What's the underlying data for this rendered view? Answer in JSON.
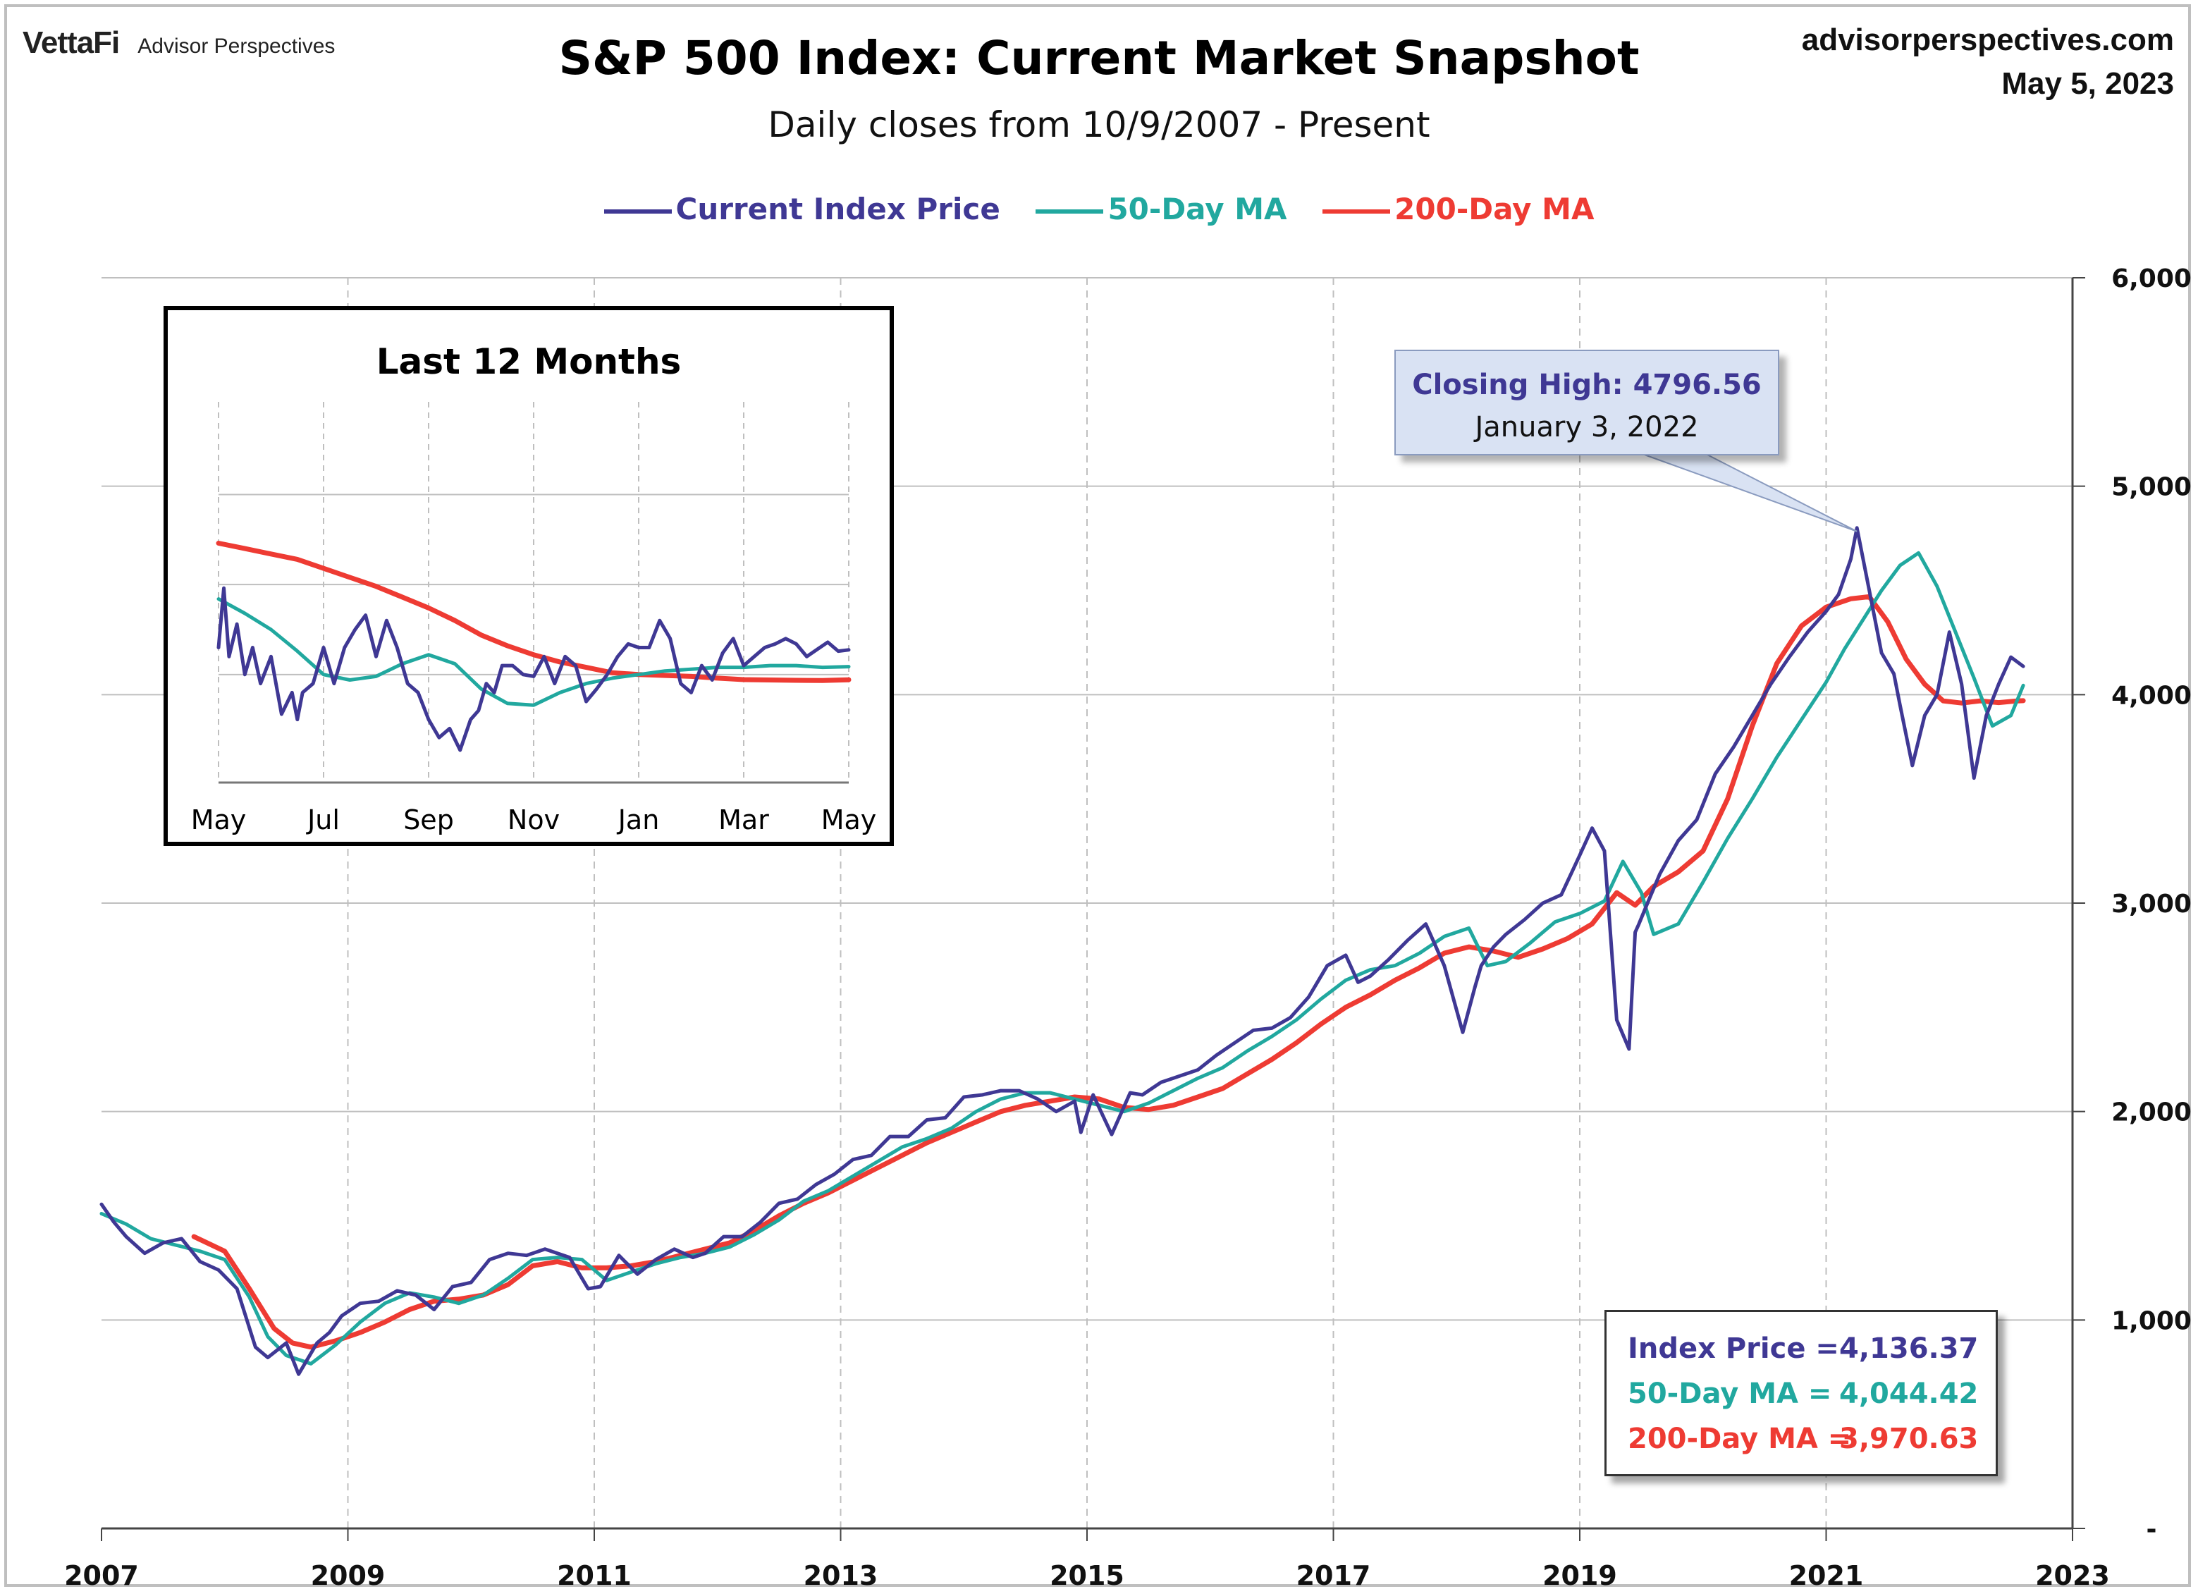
{
  "brand": {
    "logo": "VettaFi",
    "name": "Advisor Perspectives"
  },
  "site": {
    "url": "advisorperspectives.com",
    "date": "May 5, 2023"
  },
  "colors": {
    "price": "#3f3894",
    "ma50": "#21a89f",
    "ma200": "#ee3b33",
    "grid": "#bfbfbf"
  },
  "chart_data": [
    {
      "type": "line",
      "title": "S&P 500 Index: Current Market Snapshot",
      "subtitle": "Daily closes from 10/9/2007 - Present",
      "xlabel": "",
      "ylabel": "",
      "x_ticks": [
        "2007",
        "2009",
        "2011",
        "2013",
        "2015",
        "2017",
        "2019",
        "2021",
        "2023"
      ],
      "y_ticks": [
        "-",
        "1,000",
        "2,000",
        "3,000",
        "4,000",
        "5,000",
        "6,000"
      ],
      "xlim": [
        2007.0,
        2023.0
      ],
      "ylim": [
        0,
        6000
      ],
      "grid": true,
      "legend_position": "top",
      "series": [
        {
          "name": "Current Index Price",
          "x": [
            2007.0,
            2007.1,
            2007.2,
            2007.35,
            2007.5,
            2007.65,
            2007.8,
            2007.95,
            2008.1,
            2008.25,
            2008.35,
            2008.5,
            2008.6,
            2008.75,
            2008.85,
            2008.95,
            2009.1,
            2009.25,
            2009.4,
            2009.55,
            2009.7,
            2009.85,
            2010.0,
            2010.15,
            2010.3,
            2010.45,
            2010.6,
            2010.8,
            2010.95,
            2011.05,
            2011.2,
            2011.35,
            2011.5,
            2011.65,
            2011.8,
            2011.9,
            2012.05,
            2012.2,
            2012.35,
            2012.5,
            2012.65,
            2012.8,
            2012.95,
            2013.1,
            2013.25,
            2013.4,
            2013.55,
            2013.7,
            2013.85,
            2014.0,
            2014.15,
            2014.3,
            2014.45,
            2014.6,
            2014.75,
            2014.9,
            2014.95,
            2015.05,
            2015.2,
            2015.35,
            2015.45,
            2015.6,
            2015.75,
            2015.9,
            2016.05,
            2016.2,
            2016.35,
            2016.5,
            2016.65,
            2016.8,
            2016.95,
            2017.1,
            2017.2,
            2017.3,
            2017.45,
            2017.6,
            2017.75,
            2017.9,
            2018.05,
            2018.15,
            2018.2,
            2018.3,
            2018.4,
            2018.55,
            2018.7,
            2018.85,
            2019.0,
            2019.1,
            2019.2,
            2019.3,
            2019.4,
            2019.45,
            2019.48,
            2019.55,
            2019.65,
            2019.8,
            2019.95,
            2020.1,
            2020.25,
            2020.4,
            2020.55,
            2020.7,
            2020.85,
            2021.0,
            2021.1,
            2021.2,
            2021.25,
            2021.35,
            2021.45,
            2021.55,
            2021.6,
            2021.7,
            2021.8,
            2021.9,
            2022.0,
            2022.1,
            2022.2,
            2022.3,
            2022.4,
            2022.5,
            2022.6
          ],
          "values": [
            1555,
            1470,
            1400,
            1320,
            1370,
            1390,
            1280,
            1240,
            1150,
            870,
            820,
            890,
            740,
            890,
            940,
            1020,
            1080,
            1090,
            1140,
            1120,
            1050,
            1160,
            1180,
            1290,
            1320,
            1310,
            1340,
            1300,
            1150,
            1160,
            1310,
            1220,
            1290,
            1340,
            1300,
            1320,
            1400,
            1400,
            1470,
            1560,
            1580,
            1650,
            1700,
            1770,
            1790,
            1880,
            1880,
            1960,
            1970,
            2070,
            2080,
            2100,
            2100,
            2060,
            2000,
            2050,
            1900,
            2080,
            1890,
            2090,
            2080,
            2140,
            2170,
            2200,
            2270,
            2330,
            2390,
            2400,
            2450,
            2550,
            2700,
            2750,
            2620,
            2650,
            2730,
            2820,
            2900,
            2700,
            2380,
            2600,
            2700,
            2790,
            2850,
            2920,
            3000,
            3040,
            3230,
            3360,
            3250,
            2440,
            2300,
            2860,
            2900,
            3000,
            3140,
            3300,
            3400,
            3620,
            3750,
            3900,
            4050,
            4180,
            4300,
            4400,
            4480,
            4650,
            4800,
            4500,
            4200,
            4100,
            3950,
            3660,
            3900,
            4000,
            4300,
            4050,
            3600,
            3900,
            4050,
            4180,
            4136
          ]
        },
        {
          "name": "50-Day MA",
          "x": [
            2007.0,
            2007.2,
            2007.4,
            2007.6,
            2007.8,
            2008.0,
            2008.2,
            2008.35,
            2008.5,
            2008.7,
            2008.9,
            2009.1,
            2009.3,
            2009.5,
            2009.7,
            2009.9,
            2010.1,
            2010.3,
            2010.5,
            2010.7,
            2010.9,
            2011.1,
            2011.3,
            2011.5,
            2011.7,
            2011.9,
            2012.1,
            2012.3,
            2012.5,
            2012.7,
            2012.9,
            2013.1,
            2013.3,
            2013.5,
            2013.7,
            2013.9,
            2014.1,
            2014.3,
            2014.5,
            2014.7,
            2014.9,
            2015.1,
            2015.3,
            2015.5,
            2015.7,
            2015.9,
            2016.1,
            2016.3,
            2016.5,
            2016.7,
            2016.9,
            2017.1,
            2017.3,
            2017.5,
            2017.7,
            2017.9,
            2018.1,
            2018.25,
            2018.4,
            2018.6,
            2018.8,
            2019.0,
            2019.2,
            2019.35,
            2019.5,
            2019.6,
            2019.8,
            2020.0,
            2020.2,
            2020.4,
            2020.6,
            2020.8,
            2021.0,
            2021.15,
            2021.3,
            2021.45,
            2021.6,
            2021.75,
            2021.9,
            2022.05,
            2022.2,
            2022.35,
            2022.5,
            2022.6
          ],
          "values": [
            1510,
            1460,
            1390,
            1360,
            1330,
            1290,
            1110,
            920,
            830,
            790,
            880,
            990,
            1080,
            1130,
            1110,
            1080,
            1120,
            1200,
            1290,
            1300,
            1290,
            1190,
            1230,
            1270,
            1300,
            1320,
            1350,
            1410,
            1480,
            1570,
            1620,
            1690,
            1760,
            1830,
            1870,
            1920,
            2000,
            2060,
            2090,
            2090,
            2060,
            2030,
            2000,
            2040,
            2100,
            2160,
            2210,
            2290,
            2360,
            2440,
            2540,
            2630,
            2680,
            2700,
            2760,
            2840,
            2880,
            2700,
            2720,
            2810,
            2910,
            2950,
            3010,
            3200,
            3050,
            2850,
            2900,
            3100,
            3310,
            3500,
            3700,
            3880,
            4060,
            4220,
            4360,
            4500,
            4620,
            4680,
            4520,
            4300,
            4080,
            3850,
            3900,
            4044
          ]
        },
        {
          "name": "200-Day MA",
          "x": [
            2007.75,
            2008.0,
            2008.2,
            2008.4,
            2008.55,
            2008.7,
            2008.9,
            2009.1,
            2009.3,
            2009.5,
            2009.7,
            2009.9,
            2010.1,
            2010.3,
            2010.5,
            2010.7,
            2010.9,
            2011.1,
            2011.3,
            2011.5,
            2011.7,
            2011.9,
            2012.1,
            2012.3,
            2012.5,
            2012.7,
            2012.9,
            2013.1,
            2013.3,
            2013.5,
            2013.7,
            2013.9,
            2014.1,
            2014.3,
            2014.5,
            2014.7,
            2014.9,
            2015.1,
            2015.3,
            2015.5,
            2015.7,
            2015.9,
            2016.1,
            2016.3,
            2016.5,
            2016.7,
            2016.9,
            2017.1,
            2017.3,
            2017.5,
            2017.7,
            2017.9,
            2018.1,
            2018.3,
            2018.5,
            2018.7,
            2018.9,
            2019.1,
            2019.3,
            2019.45,
            2019.6,
            2019.8,
            2020.0,
            2020.2,
            2020.4,
            2020.6,
            2020.8,
            2021.0,
            2021.2,
            2021.35,
            2021.5,
            2021.65,
            2021.8,
            2021.95,
            2022.1,
            2022.25,
            2022.4,
            2022.55,
            2022.6
          ],
          "values": [
            1400,
            1330,
            1150,
            960,
            890,
            870,
            900,
            940,
            990,
            1050,
            1090,
            1100,
            1120,
            1170,
            1260,
            1280,
            1250,
            1250,
            1260,
            1280,
            1310,
            1340,
            1370,
            1430,
            1500,
            1560,
            1610,
            1670,
            1730,
            1790,
            1850,
            1900,
            1950,
            2000,
            2030,
            2050,
            2070,
            2060,
            2020,
            2010,
            2030,
            2070,
            2110,
            2180,
            2250,
            2330,
            2420,
            2500,
            2560,
            2630,
            2690,
            2760,
            2790,
            2770,
            2740,
            2780,
            2830,
            2900,
            3050,
            2990,
            3080,
            3150,
            3250,
            3500,
            3850,
            4150,
            4330,
            4420,
            4460,
            4470,
            4350,
            4170,
            4050,
            3970,
            3960,
            3970,
            3962,
            3970,
            3971
          ]
        }
      ],
      "annotation": {
        "label": "Closing High:",
        "value": "4796.56",
        "date": "January 3, 2022",
        "x": 2021.25,
        "y": 4796.56
      }
    },
    {
      "type": "line",
      "title": "Last 12 Months",
      "xlabel": "",
      "ylabel": "",
      "x_ticks": [
        "May",
        "Jul",
        "Sep",
        "Nov",
        "Jan",
        "Mar",
        "May"
      ],
      "xlim": [
        0,
        12
      ],
      "ylim": [
        3400,
        5100
      ],
      "grid": true,
      "series": [
        {
          "name": "Current Index Price",
          "x": [
            0,
            0.1,
            0.2,
            0.35,
            0.5,
            0.65,
            0.8,
            1.0,
            1.2,
            1.4,
            1.5,
            1.6,
            1.8,
            2.0,
            2.2,
            2.4,
            2.6,
            2.8,
            3.0,
            3.2,
            3.4,
            3.6,
            3.8,
            4.0,
            4.2,
            4.4,
            4.6,
            4.8,
            4.95,
            5.1,
            5.25,
            5.4,
            5.6,
            5.8,
            6.0,
            6.2,
            6.4,
            6.6,
            6.8,
            7.0,
            7.2,
            7.4,
            7.6,
            7.8,
            8.0,
            8.2,
            8.4,
            8.6,
            8.8,
            9.0,
            9.2,
            9.4,
            9.6,
            9.8,
            10.0,
            10.2,
            10.4,
            10.6,
            10.8,
            11.0,
            11.2,
            11.4,
            11.6,
            11.8,
            12.0
          ],
          "values": [
            4150,
            4480,
            4100,
            4280,
            4000,
            4150,
            3950,
            4100,
            3780,
            3900,
            3750,
            3900,
            3950,
            4150,
            3950,
            4150,
            4250,
            4330,
            4100,
            4300,
            4150,
            3950,
            3900,
            3750,
            3650,
            3700,
            3580,
            3750,
            3800,
            3950,
            3900,
            4050,
            4050,
            4000,
            3990,
            4100,
            3950,
            4100,
            4050,
            3850,
            3920,
            4000,
            4100,
            4170,
            4150,
            4150,
            4300,
            4200,
            3950,
            3900,
            4050,
            3970,
            4120,
            4200,
            4050,
            4100,
            4150,
            4170,
            4200,
            4170,
            4100,
            4140,
            4180,
            4130,
            4137
          ]
        },
        {
          "name": "50-Day MA",
          "x": [
            0,
            0.5,
            1,
            1.5,
            2,
            2.5,
            3,
            3.5,
            4,
            4.5,
            5,
            5.5,
            6,
            6.5,
            7,
            7.5,
            8,
            8.5,
            9,
            9.5,
            10,
            10.5,
            11,
            11.5,
            12
          ],
          "values": [
            4420,
            4340,
            4250,
            4130,
            4000,
            3970,
            3990,
            4060,
            4110,
            4060,
            3920,
            3840,
            3830,
            3900,
            3950,
            3980,
            4000,
            4020,
            4030,
            4040,
            4040,
            4050,
            4050,
            4040,
            4044
          ]
        },
        {
          "name": "200-Day MA",
          "x": [
            0,
            0.5,
            1,
            1.5,
            2,
            2.5,
            3,
            3.5,
            4,
            4.5,
            5,
            5.5,
            6,
            6.5,
            7,
            7.5,
            8,
            8.5,
            9,
            9.5,
            10,
            10.5,
            11,
            11.5,
            12
          ],
          "values": [
            4730,
            4700,
            4670,
            4640,
            4590,
            4540,
            4490,
            4430,
            4370,
            4300,
            4220,
            4160,
            4110,
            4070,
            4040,
            4010,
            4000,
            3995,
            3990,
            3980,
            3972,
            3970,
            3968,
            3967,
            3971
          ]
        }
      ]
    }
  ],
  "summary": {
    "rows": [
      {
        "label": "Index Price =",
        "value": "4,136.37",
        "color": "#3f3894"
      },
      {
        "label": "50-Day MA =",
        "value": "4,044.42",
        "color": "#21a89f"
      },
      {
        "label": "200-Day MA =",
        "value": "3,970.63",
        "color": "#ee3b33"
      }
    ]
  }
}
